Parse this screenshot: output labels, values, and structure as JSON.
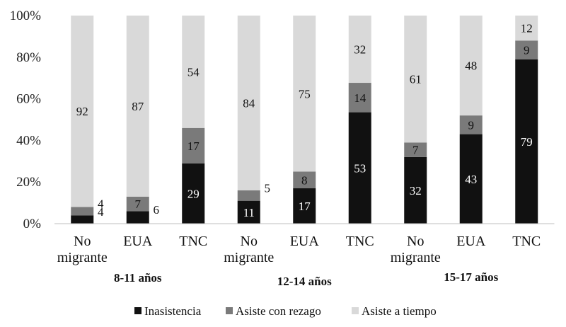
{
  "chart_data": {
    "type": "bar",
    "stacked": true,
    "percent_axis": true,
    "categories": [
      "No migrante",
      "EUA",
      "TNC",
      "No migrante",
      "EUA",
      "TNC",
      "No migrante",
      "EUA",
      "TNC"
    ],
    "category_lines": [
      [
        "No",
        "migrante"
      ],
      [
        "EUA"
      ],
      [
        "TNC"
      ],
      [
        "No",
        "migrante"
      ],
      [
        "EUA"
      ],
      [
        "TNC"
      ],
      [
        "No",
        "migrante"
      ],
      [
        "EUA"
      ],
      [
        "TNC"
      ]
    ],
    "groups": [
      {
        "label": "8-11 años",
        "categories": [
          0,
          1,
          2
        ]
      },
      {
        "label": "12-14 años",
        "categories": [
          3,
          4,
          5
        ]
      },
      {
        "label": "15-17 años",
        "categories": [
          6,
          7,
          8
        ]
      }
    ],
    "series": [
      {
        "name": "Inasistencia",
        "color": "#111111",
        "label_color": "#ffffff",
        "values": [
          4,
          6,
          29,
          11,
          17,
          53,
          32,
          43,
          79
        ]
      },
      {
        "name": "Asiste con rezago",
        "color": "#7a7a7a",
        "label_color": "#111111",
        "values": [
          4,
          7,
          17,
          5,
          8,
          14,
          7,
          9,
          9
        ]
      },
      {
        "name": "Asiste a tiempo",
        "color": "#d9d9d9",
        "label_color": "#111111",
        "values": [
          92,
          87,
          54,
          84,
          75,
          32,
          61,
          48,
          12
        ]
      }
    ],
    "y_ticks": [
      "0%",
      "20%",
      "40%",
      "60%",
      "80%",
      "100%"
    ],
    "ylim": [
      0,
      100
    ],
    "legend_position": "bottom",
    "grid": false
  }
}
